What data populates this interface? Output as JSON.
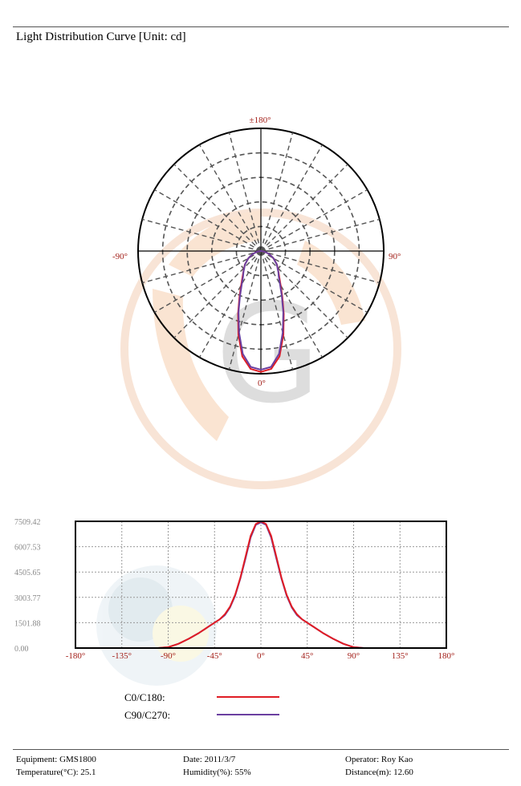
{
  "report": {
    "title": "Light Distribution Curve [Unit: cd]"
  },
  "colors": {
    "c0": "#e01c24",
    "c90": "#6b3fa0",
    "axis_label": "#a3201a",
    "tick_label": "#8a8a8a",
    "grid": "#555555"
  },
  "polar": {
    "labels": {
      "top": "±180°",
      "left": "-90°",
      "right": "90°",
      "bottom": "0°"
    }
  },
  "chart_data": {
    "type": "line",
    "x_ticks": [
      "-180°",
      "-135°",
      "-90°",
      "-45°",
      "0°",
      "45°",
      "90°",
      "135°",
      "180°"
    ],
    "y_ticks": [
      "7509.42",
      "6007.53",
      "4505.65",
      "3003.77",
      "1501.88",
      "0.00"
    ],
    "xlim": [
      -180,
      180
    ],
    "ylim": [
      0,
      7509.42
    ],
    "grid": true,
    "series": [
      {
        "name": "C0/C180:",
        "color": "#e01c24",
        "x": [
          -180,
          -100,
          -90,
          -80,
          -70,
          -60,
          -50,
          -40,
          -35,
          -30,
          -25,
          -20,
          -15,
          -10,
          -5,
          0,
          5,
          10,
          15,
          20,
          25,
          30,
          35,
          40,
          50,
          60,
          70,
          80,
          90,
          100,
          180
        ],
        "y": [
          0,
          0,
          50,
          250,
          550,
          900,
          1300,
          1700,
          2000,
          2450,
          3150,
          4150,
          5400,
          6650,
          7350,
          7509,
          7350,
          6650,
          5400,
          4150,
          3150,
          2450,
          2000,
          1700,
          1300,
          900,
          550,
          250,
          50,
          0,
          0
        ]
      },
      {
        "name": "C90/C270:",
        "color": "#6b3fa0",
        "x": [
          -180,
          -100,
          -90,
          -80,
          -70,
          -60,
          -50,
          -40,
          -35,
          -30,
          -25,
          -20,
          -15,
          -10,
          -5,
          0,
          5,
          10,
          15,
          20,
          25,
          30,
          35,
          40,
          50,
          60,
          70,
          80,
          90,
          100,
          180
        ],
        "y": [
          0,
          0,
          50,
          250,
          550,
          900,
          1300,
          1700,
          1950,
          2400,
          3100,
          4100,
          5300,
          6550,
          7300,
          7450,
          7300,
          6550,
          5300,
          4100,
          3100,
          2400,
          1950,
          1700,
          1300,
          900,
          550,
          250,
          50,
          0,
          0
        ]
      }
    ]
  },
  "legend": {
    "c0_label": "C0/C180:",
    "c90_label": "C90/C270:"
  },
  "footer": {
    "equipment": "Equipment: GMS1800",
    "temperature": "Temperature(°C): 25.1",
    "date": "Date: 2011/3/7",
    "humidity": "Humidity(%): 55%",
    "operator": "Operator: Roy Kao",
    "distance": "Distance(m): 12.60"
  }
}
